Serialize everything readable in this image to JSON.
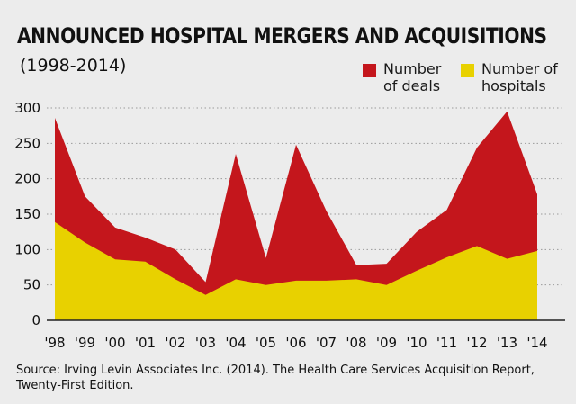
{
  "title": "ANNOUNCED HOSPITAL MERGERS AND ACQUISITIONS",
  "subtitle": "(1998-2014)",
  "source": "Source: Irving Levin Associates Inc. (2014). The Health Care Services Acquisition Report, Twenty-First Edition.",
  "colors": {
    "deals": "#c4161c",
    "hospitals": "#e8d100",
    "background": "#ececec",
    "grid": "#9a9a9a"
  },
  "chart_data": {
    "type": "area",
    "categories": [
      "'98",
      "'99",
      "'00",
      "'01",
      "'02",
      "'03",
      "'04",
      "'05",
      "'06",
      "'07",
      "'08",
      "'09",
      "'10",
      "'11",
      "'12",
      "'13",
      "'14"
    ],
    "series": [
      {
        "name": "Number of deals",
        "color": "#c4161c",
        "values": [
          286,
          175,
          131,
          117,
          100,
          54,
          235,
          88,
          248,
          155,
          78,
          80,
          125,
          156,
          244,
          295,
          178
        ]
      },
      {
        "name": "Number of hospitals",
        "color": "#e8d100",
        "values": [
          139,
          110,
          86,
          83,
          58,
          36,
          58,
          50,
          56,
          56,
          58,
          50,
          70,
          89,
          105,
          87,
          98
        ]
      }
    ],
    "legend": [
      {
        "line1": "Number",
        "line2": "of deals"
      },
      {
        "line1": "Number of",
        "line2": "hospitals"
      }
    ],
    "yticks": [
      "0",
      "50",
      "100",
      "150",
      "200",
      "250",
      "300"
    ],
    "ytick_values": [
      0,
      50,
      100,
      150,
      200,
      250,
      300
    ],
    "ylim": [
      0,
      300
    ],
    "grid": "dotted horizontal",
    "legend_placement": "top-right"
  }
}
